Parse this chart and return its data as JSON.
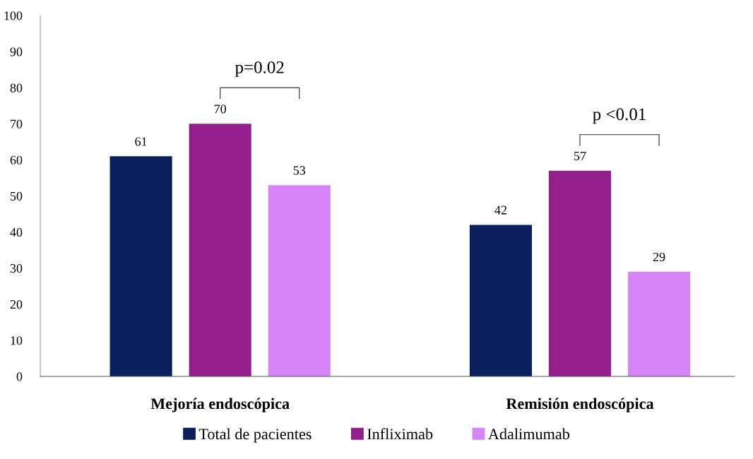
{
  "chart_data": {
    "type": "bar",
    "categories": [
      "Mejoría endoscópica",
      "Remisión endoscópica"
    ],
    "series": [
      {
        "name": "Total de pacientes",
        "color": "#0a1f5c",
        "values": [
          61,
          42
        ]
      },
      {
        "name": "Infliximab",
        "color": "#931e8c",
        "values": [
          70,
          57
        ]
      },
      {
        "name": "Adalimumab",
        "color": "#d784f7",
        "values": [
          53,
          29
        ]
      }
    ],
    "ylim": [
      0,
      100
    ],
    "yticks": [
      0,
      10,
      20,
      30,
      40,
      50,
      60,
      70,
      80,
      90,
      100
    ],
    "data_labels": true,
    "grid": false,
    "legend": "bottom",
    "annotations": [
      "p=0.02",
      "p <0.01"
    ]
  }
}
